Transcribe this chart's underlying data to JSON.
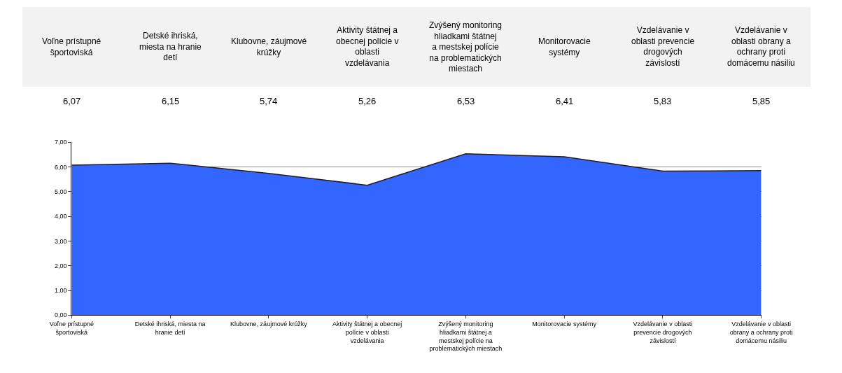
{
  "chart_data": {
    "type": "area",
    "categories": [
      "Voľne prístupné športoviská",
      "Detské ihriská, miesta na hranie detí",
      "Klubovne, záujmové krúžky",
      "Aktivity štátnej a obecnej polície v oblasti vzdelávania",
      "Zvýšený monitoring hliadkami štátnej a mestskej polície na problematických miestach",
      "Monitorovacie systémy",
      "Vzdelávanie v oblasti prevencie drogových závislostí",
      "Vzdelávanie v oblasti obrany a ochrany proti domácemu násiliu"
    ],
    "values": [
      6.07,
      6.15,
      5.74,
      5.26,
      6.53,
      6.41,
      5.83,
      5.85
    ],
    "value_labels": [
      "6,07",
      "6,15",
      "5,74",
      "5,26",
      "6,53",
      "6,41",
      "5,83",
      "5,85"
    ],
    "color": "#3366ff",
    "ylim": [
      0,
      7
    ],
    "yticks": [
      {
        "value": 0,
        "label": "0,00"
      },
      {
        "value": 1,
        "label": "1,00"
      },
      {
        "value": 2,
        "label": "2,00"
      },
      {
        "value": 3,
        "label": "3,00"
      },
      {
        "value": 4,
        "label": "4,00"
      },
      {
        "value": 5,
        "label": "5,00"
      },
      {
        "value": 6,
        "label": "6,00"
      },
      {
        "value": 7,
        "label": "7,00"
      }
    ],
    "grid": "y",
    "legend": false
  }
}
